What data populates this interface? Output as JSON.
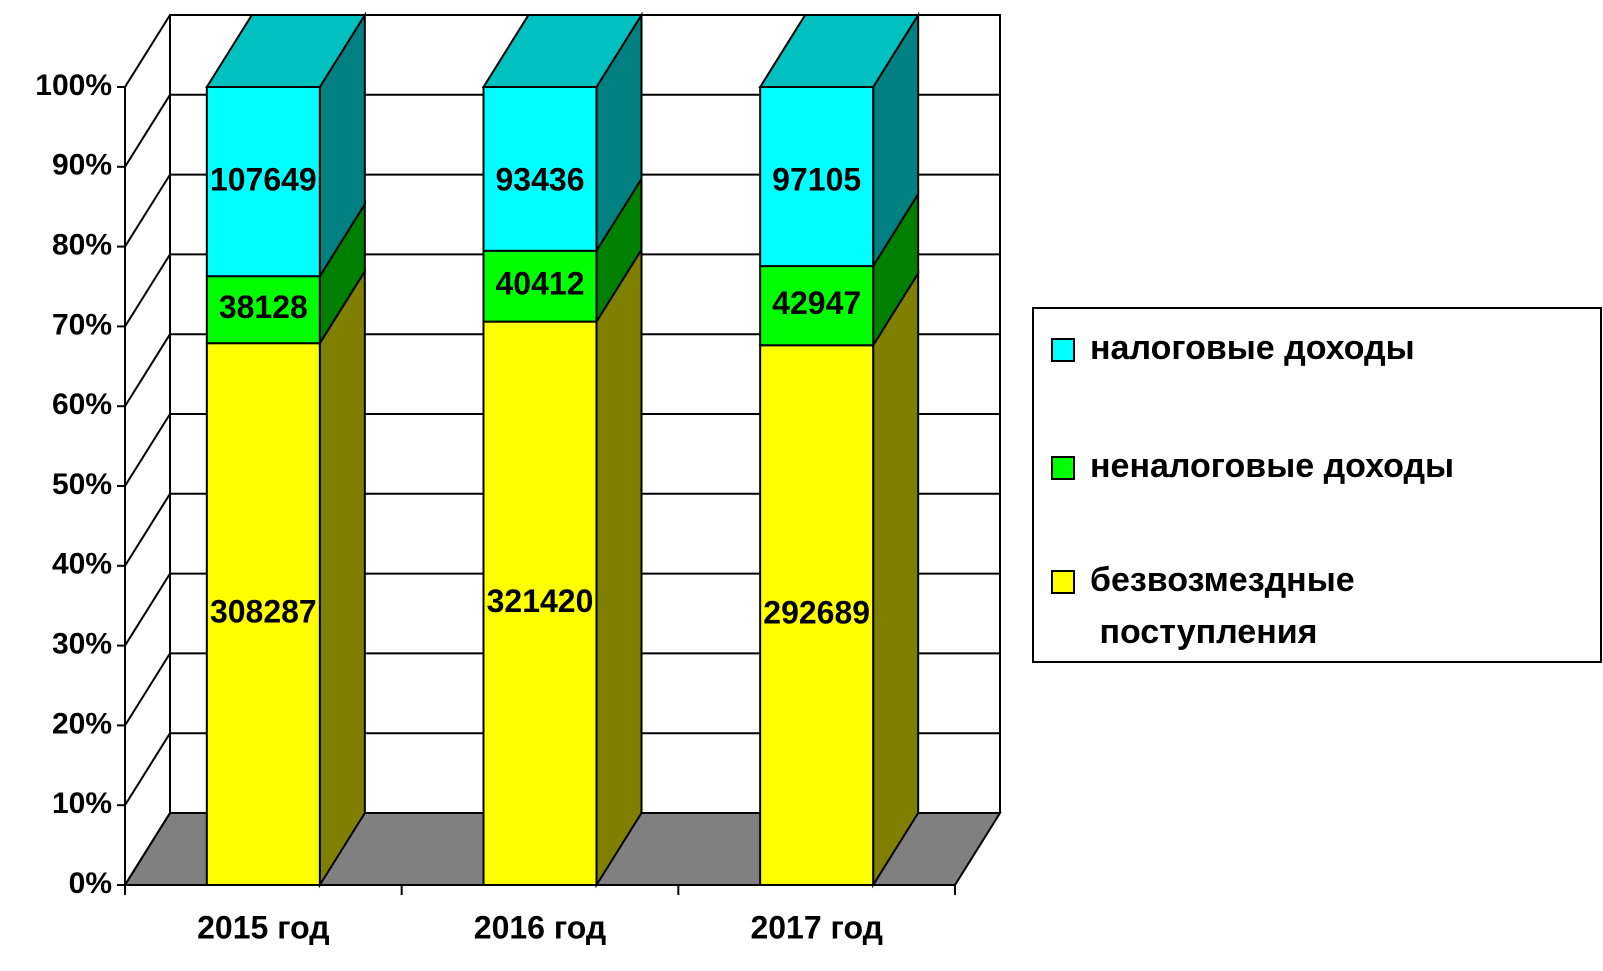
{
  "chart_data": {
    "type": "bar",
    "stacking": "percent",
    "three_d": true,
    "categories": [
      "2015 год",
      "2016 год",
      "2017 год"
    ],
    "series": [
      {
        "name": "безвозмездные поступления",
        "color": "#ffff00",
        "side_color": "#808000",
        "values": [
          308287,
          321420,
          292689
        ]
      },
      {
        "name": "неналоговые доходы",
        "color": "#00ff00",
        "side_color": "#008000",
        "values": [
          38128,
          40412,
          42947
        ]
      },
      {
        "name": "налоговые доходы",
        "color": "#00ffff",
        "side_color": "#008080",
        "top_color": "#00c0c0",
        "values": [
          107649,
          93436,
          97105
        ]
      }
    ],
    "ylim": [
      0,
      100
    ],
    "yticks": [
      {
        "value": 0,
        "label": "0%"
      },
      {
        "value": 10,
        "label": "10%"
      },
      {
        "value": 20,
        "label": "20%"
      },
      {
        "value": 30,
        "label": "30%"
      },
      {
        "value": 40,
        "label": "40%"
      },
      {
        "value": 50,
        "label": "50%"
      },
      {
        "value": 60,
        "label": "60%"
      },
      {
        "value": 70,
        "label": "70%"
      },
      {
        "value": 80,
        "label": "80%"
      },
      {
        "value": 90,
        "label": "90%"
      },
      {
        "value": 100,
        "label": "100%"
      }
    ],
    "grid": true,
    "legend": "right",
    "floor_color": "#808080"
  }
}
